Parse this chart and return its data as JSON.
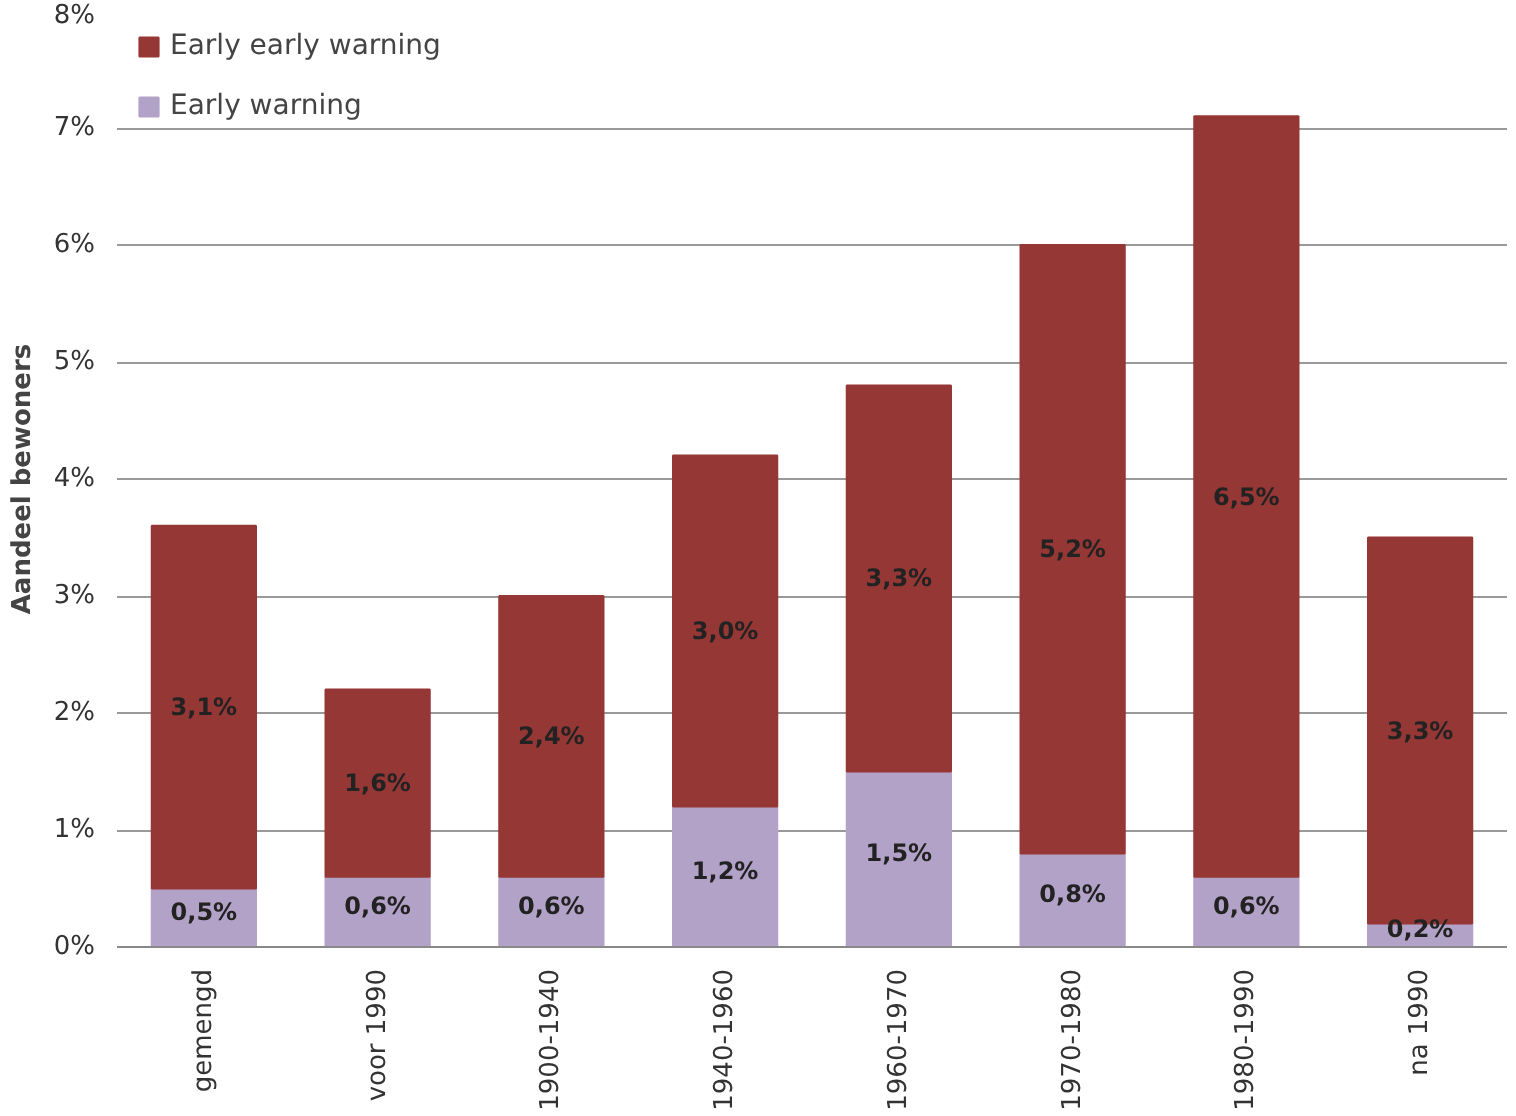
{
  "chart_data": {
    "type": "bar",
    "stacked": true,
    "ylabel": "Aandeel bewoners",
    "categories": [
      "gemengd",
      "voor 1990",
      "1900-1940",
      "1940-1960",
      "1960-1970",
      "1970-1980",
      "1980-1990",
      "na 1990"
    ],
    "series": [
      {
        "name": "Early warning",
        "color": "#b3a2c7",
        "values": [
          0.5,
          0.6,
          0.6,
          1.2,
          1.5,
          0.8,
          0.6,
          0.2
        ],
        "value_labels": [
          "0,5%",
          "0,6%",
          "0,6%",
          "1,2%",
          "1,5%",
          "0,8%",
          "0,6%",
          "0,2%"
        ]
      },
      {
        "name": "Early early warning",
        "color": "#953735",
        "values": [
          3.1,
          1.6,
          2.4,
          3.0,
          3.3,
          5.2,
          6.5,
          3.3
        ],
        "value_labels": [
          "3,1%",
          "1,6%",
          "2,4%",
          "3,0%",
          "3,3%",
          "5,2%",
          "6,5%",
          "3,3%"
        ]
      }
    ],
    "ylim": [
      0,
      8
    ],
    "yticks": [
      {
        "value": 0,
        "label": "0%"
      },
      {
        "value": 1,
        "label": "1%"
      },
      {
        "value": 2,
        "label": "2%"
      },
      {
        "value": 3,
        "label": "3%"
      },
      {
        "value": 4,
        "label": "4%"
      },
      {
        "value": 5,
        "label": "5%"
      },
      {
        "value": 6,
        "label": "6%"
      },
      {
        "value": 7,
        "label": "7%"
      },
      {
        "value": 8,
        "label": "8%"
      }
    ],
    "grid": "y",
    "legend": "top left"
  }
}
